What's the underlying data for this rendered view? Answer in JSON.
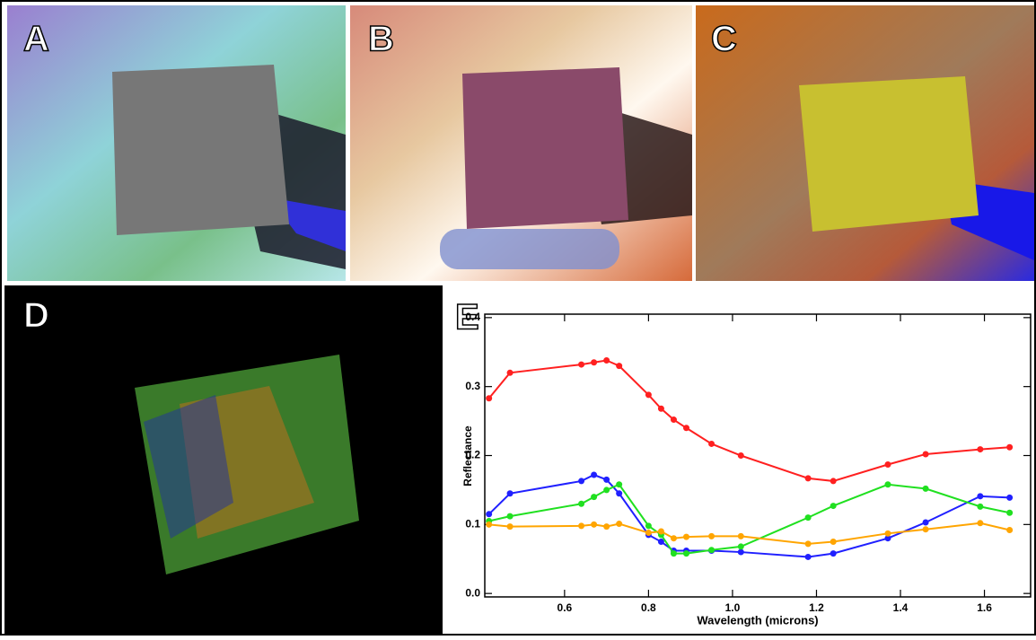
{
  "panels": [
    "A",
    "B",
    "C",
    "D"
  ],
  "chart_data": {
    "type": "line",
    "panel_label": "E",
    "x_label": "Wavelength (microns)",
    "y_label": "Reflectance",
    "x": [
      0.42,
      0.47,
      0.64,
      0.67,
      0.7,
      0.73,
      0.8,
      0.83,
      0.86,
      0.89,
      0.95,
      1.02,
      1.18,
      1.24,
      1.37,
      1.46,
      1.59,
      1.66
    ],
    "series": [
      {
        "color": "#ff2020",
        "values": [
          0.283,
          0.32,
          0.332,
          0.335,
          0.338,
          0.33,
          0.288,
          0.268,
          0.252,
          0.24,
          0.217,
          0.2,
          0.167,
          0.163,
          0.187,
          0.202,
          0.209,
          0.212
        ]
      },
      {
        "color": "#2020ff",
        "values": [
          0.115,
          0.145,
          0.163,
          0.172,
          0.165,
          0.145,
          0.085,
          0.075,
          0.062,
          0.062,
          0.062,
          0.06,
          0.053,
          0.058,
          0.08,
          0.103,
          0.141,
          0.139
        ]
      },
      {
        "color": "#20e020",
        "values": [
          0.105,
          0.112,
          0.13,
          0.14,
          0.15,
          0.158,
          0.098,
          0.085,
          0.058,
          0.058,
          0.063,
          0.068,
          0.11,
          0.127,
          0.158,
          0.152,
          0.126,
          0.117
        ]
      },
      {
        "color": "#ffa500",
        "values": [
          0.1,
          0.097,
          0.098,
          0.1,
          0.097,
          0.101,
          0.088,
          0.09,
          0.08,
          0.082,
          0.083,
          0.083,
          0.072,
          0.075,
          0.087,
          0.093,
          0.102,
          0.092
        ]
      }
    ],
    "xlim": [
      0.41,
      1.71
    ],
    "ylim": [
      -0.005,
      0.405
    ],
    "xticks": [
      0.6,
      0.8,
      {
        "value": 1,
        "label": "1.0"
      },
      1.2,
      1.4,
      1.6
    ],
    "yticks": [
      {
        "value": 0,
        "label": "0.0"
      },
      0.1,
      0.2,
      0.3,
      0.4
    ]
  }
}
